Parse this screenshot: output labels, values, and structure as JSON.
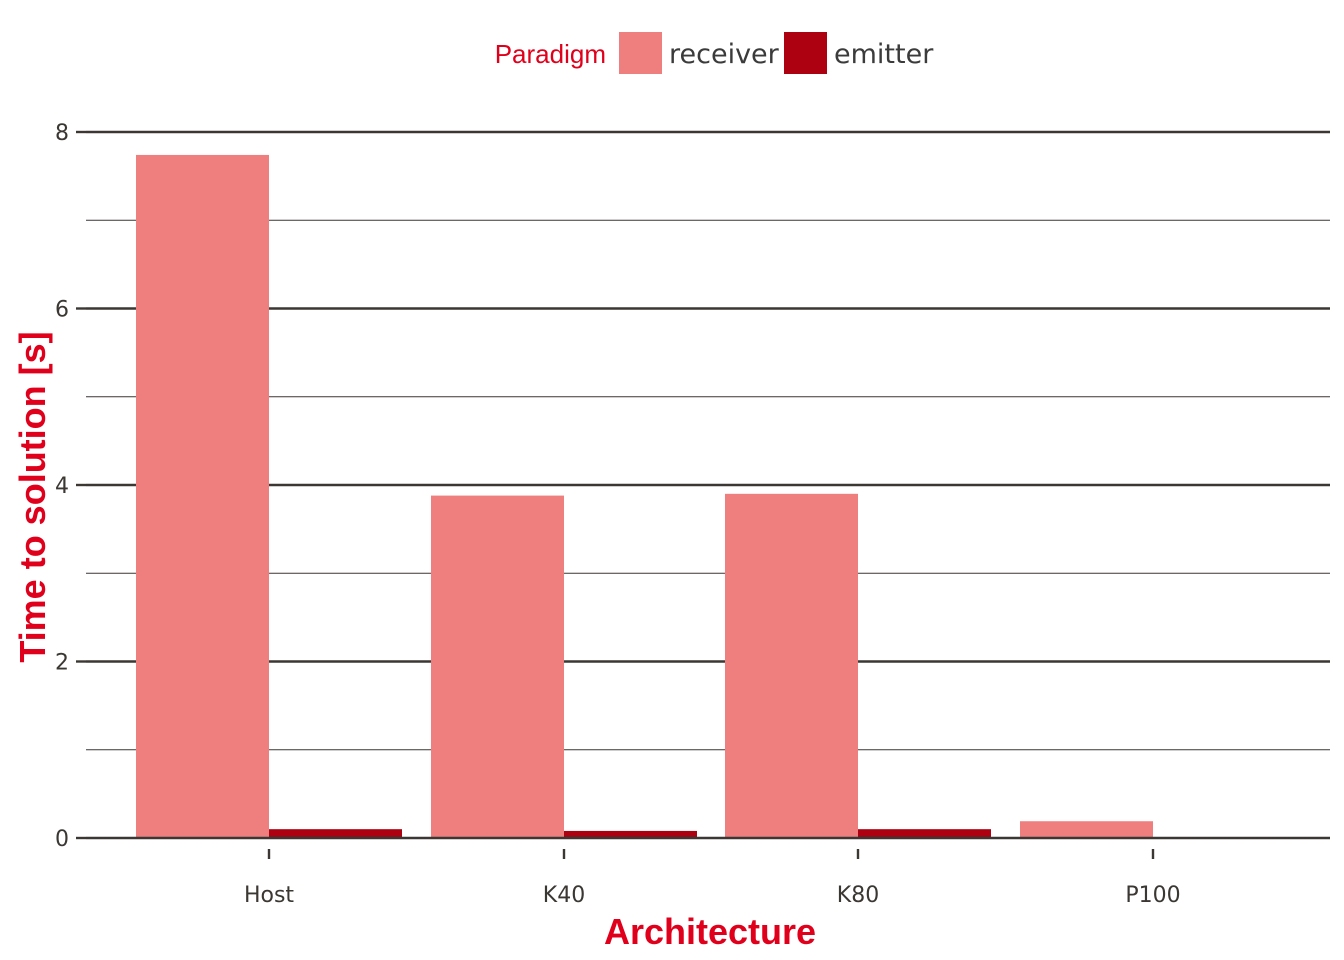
{
  "chart_data": {
    "type": "bar",
    "categories": [
      "Host",
      "K40",
      "K80",
      "P100"
    ],
    "series": [
      {
        "name": "receiver",
        "values": [
          7.74,
          3.88,
          3.9,
          0.19
        ],
        "color": "#ef7f7e"
      },
      {
        "name": "emitter",
        "values": [
          0.1,
          0.08,
          0.1,
          0.01
        ],
        "color": "#ad0011"
      }
    ],
    "legend_title": "Paradigm",
    "legend_position": "top",
    "xlabel": "Architecture",
    "ylabel": "Time to solution [s]",
    "ylim": [
      0,
      8
    ],
    "y_ticks": [
      "0",
      "2",
      "4",
      "6",
      "8"
    ],
    "grid": true,
    "accent_color": "#e0001b",
    "text_color": "#3b3733",
    "grid_color": "#3b3733"
  }
}
